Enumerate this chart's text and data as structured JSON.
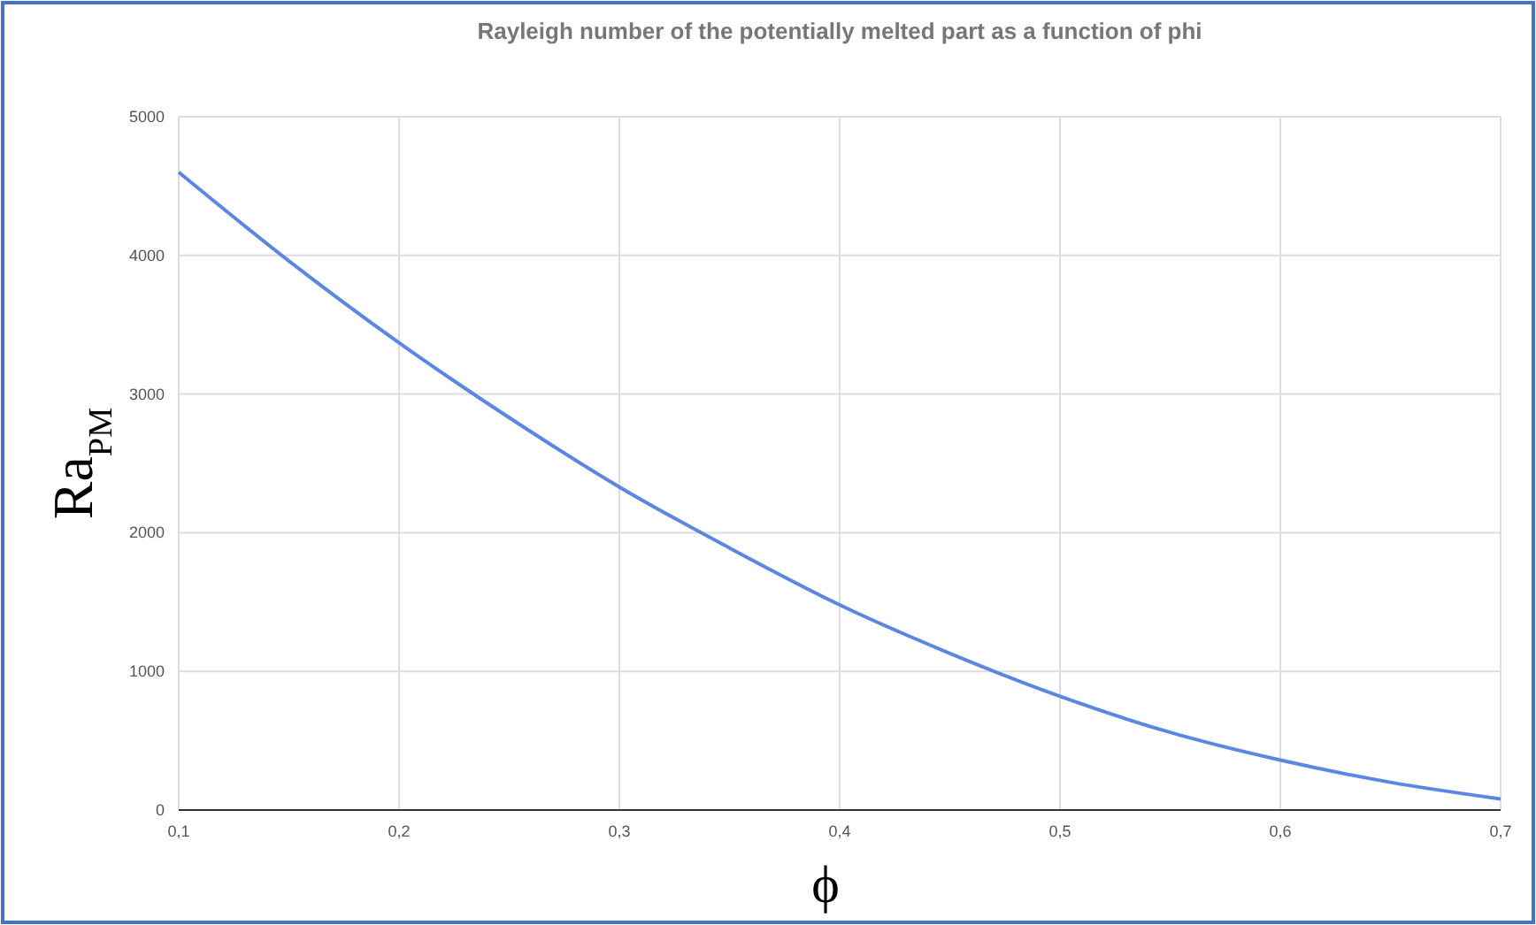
{
  "chart_data": {
    "type": "line",
    "title": "Rayleigh number of the potentially melted part as a function of phi",
    "xlabel": "ϕ",
    "ylabel": "Ra$_{PM}$",
    "x": [
      0.1,
      0.15,
      0.2,
      0.25,
      0.3,
      0.35,
      0.4,
      0.45,
      0.5,
      0.55,
      0.6,
      0.65,
      0.7
    ],
    "series": [
      {
        "color": "#5b87e0",
        "values": [
          4600,
          3960,
          3370,
          2830,
          2330,
          1890,
          1480,
          1130,
          820,
          560,
          360,
          200,
          80
        ]
      }
    ],
    "xlim": [
      0.1,
      0.7
    ],
    "xticks": [
      {
        "value": 0.1,
        "label": "0,1"
      },
      {
        "value": 0.2,
        "label": "0,2"
      },
      {
        "value": 0.3,
        "label": "0,3"
      },
      {
        "value": 0.4,
        "label": "0,4"
      },
      {
        "value": 0.5,
        "label": "0,5"
      },
      {
        "value": 0.6,
        "label": "0,6"
      },
      {
        "value": 0.7,
        "label": "0,7"
      }
    ],
    "ylim": [
      0,
      5000
    ],
    "yticks": [
      0,
      1000,
      2000,
      3000,
      4000,
      5000
    ],
    "grid": true,
    "marker": "none",
    "line_style": "solid"
  }
}
